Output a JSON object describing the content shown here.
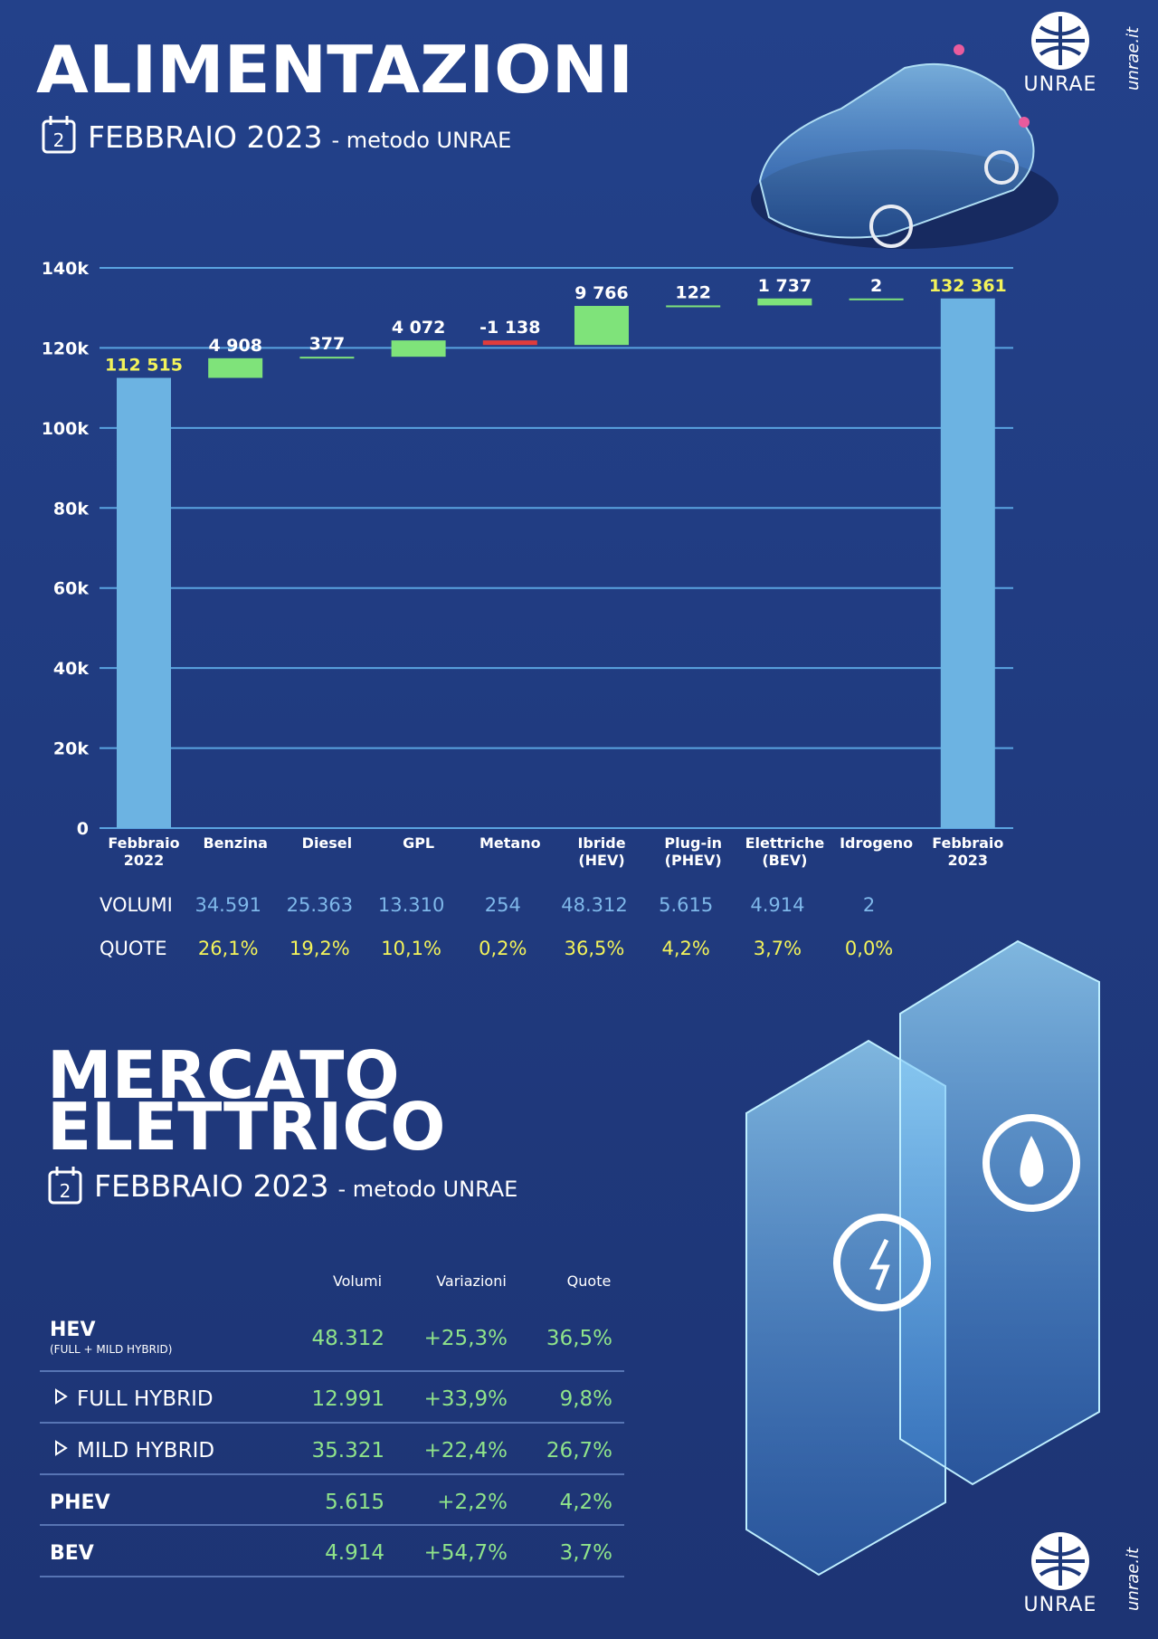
{
  "header": {
    "title": "ALIMENTAZIONI",
    "day": "2",
    "period": "FEBBRAIO 2023",
    "method": "- metodo UNRAE"
  },
  "brand": {
    "logo": "UNRAE",
    "site": "unrae.it"
  },
  "chart_data": {
    "type": "waterfall",
    "categories": [
      [
        "Febbraio",
        "2022"
      ],
      [
        "Benzina"
      ],
      [
        "Diesel"
      ],
      [
        "GPL"
      ],
      [
        "Metano"
      ],
      [
        "Ibride",
        "(HEV)"
      ],
      [
        "Plug-in",
        "(PHEV)"
      ],
      [
        "Elettriche",
        "(BEV)"
      ],
      [
        "Idrogeno"
      ],
      [
        "Febbraio",
        "2023"
      ]
    ],
    "measure": [
      "total",
      "relative",
      "relative",
      "relative",
      "relative",
      "relative",
      "relative",
      "relative",
      "relative",
      "total"
    ],
    "values": [
      112515,
      4908,
      377,
      4072,
      -1138,
      9766,
      122,
      1737,
      2,
      132361
    ],
    "value_labels": [
      "112 515",
      "4 908",
      "377",
      "4 072",
      "-1 138",
      "9 766",
      "122",
      "1 737",
      "2",
      "132 361"
    ],
    "colors": {
      "total": "#6cb3e2",
      "increase": "#7fe37a",
      "decrease": "#e03c3c"
    },
    "ylim": [
      0,
      140000
    ],
    "yticks": [
      0,
      {
        "value": 20000,
        "label": "20k"
      },
      {
        "value": 40000,
        "label": "40k"
      },
      {
        "value": 60000,
        "label": "60k"
      },
      {
        "value": 80000,
        "label": "80k"
      },
      {
        "value": 100000,
        "label": "100k"
      },
      {
        "value": 120000,
        "label": "120k"
      },
      {
        "value": 140000,
        "label": "140k"
      }
    ],
    "grid": true
  },
  "summary_table": {
    "row_labels": [
      "VOLUMI",
      "QUOTE"
    ],
    "volumi": [
      "34.591",
      "25.363",
      "13.310",
      "254",
      "48.312",
      "5.615",
      "4.914",
      "2"
    ],
    "quote": [
      "26,1%",
      "19,2%",
      "10,1%",
      "0,2%",
      "36,5%",
      "4,2%",
      "3,7%",
      "0,0%"
    ]
  },
  "section2": {
    "title_lines": [
      "MERCATO",
      "ELETTRICO"
    ],
    "day": "2",
    "period": "FEBBRAIO 2023",
    "method": "- metodo UNRAE"
  },
  "market_table": {
    "columns": [
      "Volumi",
      "Variazioni",
      "Quote"
    ],
    "rows": [
      {
        "label": "HEV",
        "sublabel": "(FULL + MILD HYBRID)",
        "cells": [
          "48.312",
          "+25,3%",
          "36,5%"
        ]
      },
      {
        "label": "FULL HYBRID",
        "cells": [
          "12.991",
          "+33,9%",
          "9,8%"
        ]
      },
      {
        "label": "MILD HYBRID",
        "cells": [
          "35.321",
          "+22,4%",
          "26,7%"
        ]
      },
      {
        "label": "PHEV",
        "cells": [
          "5.615",
          "+2,2%",
          "4,2%"
        ]
      },
      {
        "label": "BEV",
        "cells": [
          "4.914",
          "+54,7%",
          "3,7%"
        ]
      }
    ]
  }
}
